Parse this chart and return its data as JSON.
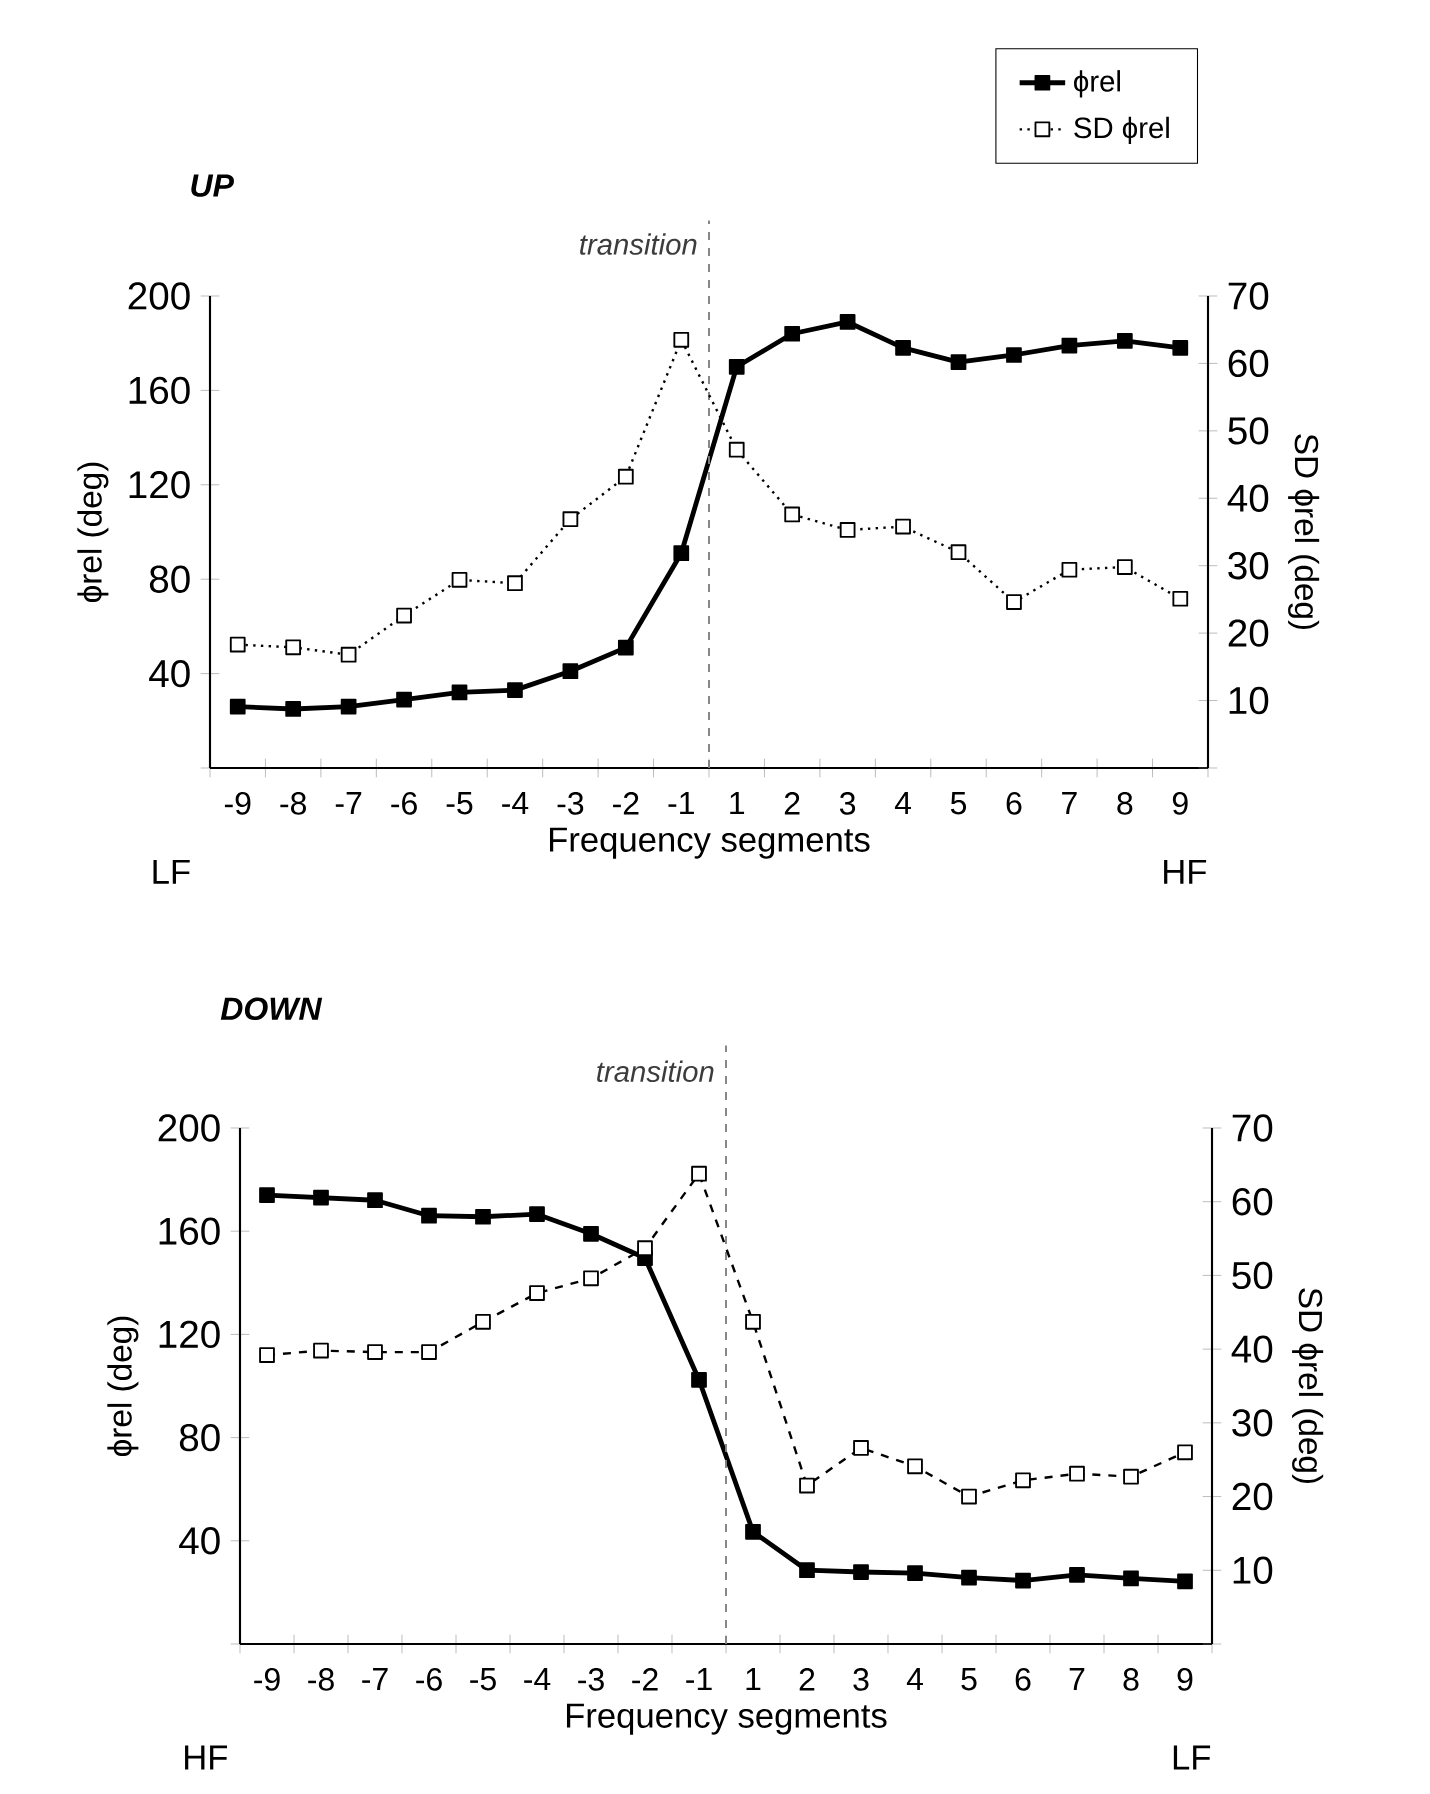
{
  "chart_data": [
    {
      "type": "line",
      "title": "UP",
      "xlabel": "Frequency segments",
      "ylabel": "ϕrel (deg)",
      "y2label": "SD ϕrel (deg)",
      "categories": [
        "-9",
        "-8",
        "-7",
        "-6",
        "-5",
        "-4",
        "-3",
        "-2",
        "-1",
        "1",
        "2",
        "3",
        "4",
        "5",
        "6",
        "7",
        "8",
        "9"
      ],
      "series": [
        {
          "name": "ϕrel",
          "color": "#000000",
          "line_style": "solid",
          "values": [
            26,
            25,
            26,
            29,
            32,
            33,
            41,
            51,
            91,
            170,
            184,
            189,
            178,
            172,
            175,
            179,
            181,
            178
          ]
        },
        {
          "name": "SD ϕrel",
          "color": "#000000",
          "line_style": "dotted",
          "axis": "y2",
          "values": [
            18.3,
            17.9,
            16.8,
            22.6,
            27.9,
            27.4,
            36.9,
            43.2,
            63.5,
            47.2,
            37.6,
            35.3,
            35.8,
            32,
            24.6,
            29.4,
            29.8,
            25.1
          ]
        }
      ],
      "ylim": [
        0,
        200
      ],
      "yticks": [
        {
          "value": 0,
          "label": null
        },
        40,
        80,
        120,
        160,
        200
      ],
      "y2lim": [
        0,
        70
      ],
      "y2ticks": [
        {
          "value": 0,
          "label": null
        },
        10,
        20,
        30,
        40,
        50,
        60,
        70
      ],
      "annotations": [
        "LF",
        "HF",
        "transition"
      ],
      "marker": "square",
      "legend": "top right"
    },
    {
      "type": "line",
      "title": "DOWN",
      "xlabel": "Frequency segments",
      "ylabel": "ϕrel (deg)",
      "y2label": "SD ϕrel (deg)",
      "categories": [
        "-9",
        "-8",
        "-7",
        "-6",
        "-5",
        "-4",
        "-3",
        "-2",
        "-1",
        "1",
        "2",
        "3",
        "4",
        "5",
        "6",
        "7",
        "8",
        "9"
      ],
      "series": [
        {
          "color": "#000000",
          "line_style": "solid",
          "values": [
            174,
            173,
            172,
            166,
            165.6,
            166.6,
            159,
            149.6,
            102.4,
            43.5,
            28.6,
            27.9,
            27.5,
            25.7,
            24.6,
            26.8,
            25.4,
            24.3
          ]
        },
        {
          "color": "#000000",
          "line_style": "dashed",
          "axis": "y2",
          "values": [
            39.2,
            39.8,
            39.6,
            39.6,
            43.7,
            47.6,
            49.6,
            53.7,
            63.8,
            43.7,
            21.5,
            26.6,
            24.1,
            20,
            22.2,
            23.1,
            22.7,
            26
          ]
        }
      ],
      "ylim": [
        0,
        200
      ],
      "yticks": [
        {
          "value": 0,
          "label": null
        },
        40,
        80,
        120,
        160,
        200
      ],
      "y2lim": [
        0,
        70
      ],
      "y2ticks": [
        {
          "value": 0,
          "label": null
        },
        10,
        20,
        30,
        40,
        50,
        60,
        70
      ],
      "annotations": [
        "HF",
        "LF",
        "transition"
      ],
      "marker": "square"
    }
  ]
}
